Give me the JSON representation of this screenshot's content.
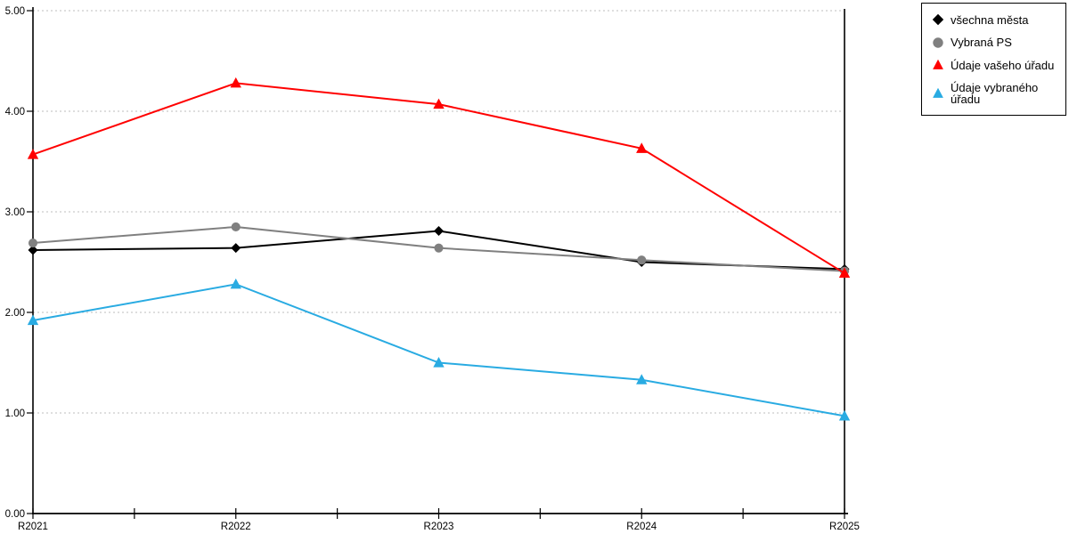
{
  "chart_data": {
    "type": "line",
    "title": "",
    "categories": [
      "R2021",
      "R2022",
      "R2023",
      "R2024",
      "R2025"
    ],
    "series": [
      {
        "name": "všechna města",
        "color": "#000000",
        "marker": "diamond",
        "values": [
          2.62,
          2.64,
          2.81,
          2.5,
          2.43
        ]
      },
      {
        "name": "Vybraná PS",
        "color": "#808080",
        "marker": "circle",
        "values": [
          2.69,
          2.85,
          2.64,
          2.52,
          2.41
        ]
      },
      {
        "name": "Údaje vašeho úřadu",
        "color": "#FF0000",
        "marker": "triangle",
        "values": [
          3.57,
          4.28,
          4.07,
          3.63,
          2.39
        ]
      },
      {
        "name": "Údaje vybraného úřadu",
        "color": "#29ABE2",
        "marker": "triangle",
        "values": [
          1.92,
          2.28,
          1.5,
          1.33,
          0.97
        ]
      }
    ],
    "xlabel": "",
    "ylabel": "",
    "ylim": [
      0,
      5
    ],
    "y_ticks": [
      0,
      1,
      2,
      3,
      4,
      5
    ],
    "y_tick_labels": [
      "0.00",
      "1.00",
      "2.00",
      "3.00",
      "4.00",
      "5.00"
    ],
    "grid": true,
    "gridline_color": "#c9c9c9",
    "axis_color": "#000000",
    "legend_position": "top-right"
  }
}
